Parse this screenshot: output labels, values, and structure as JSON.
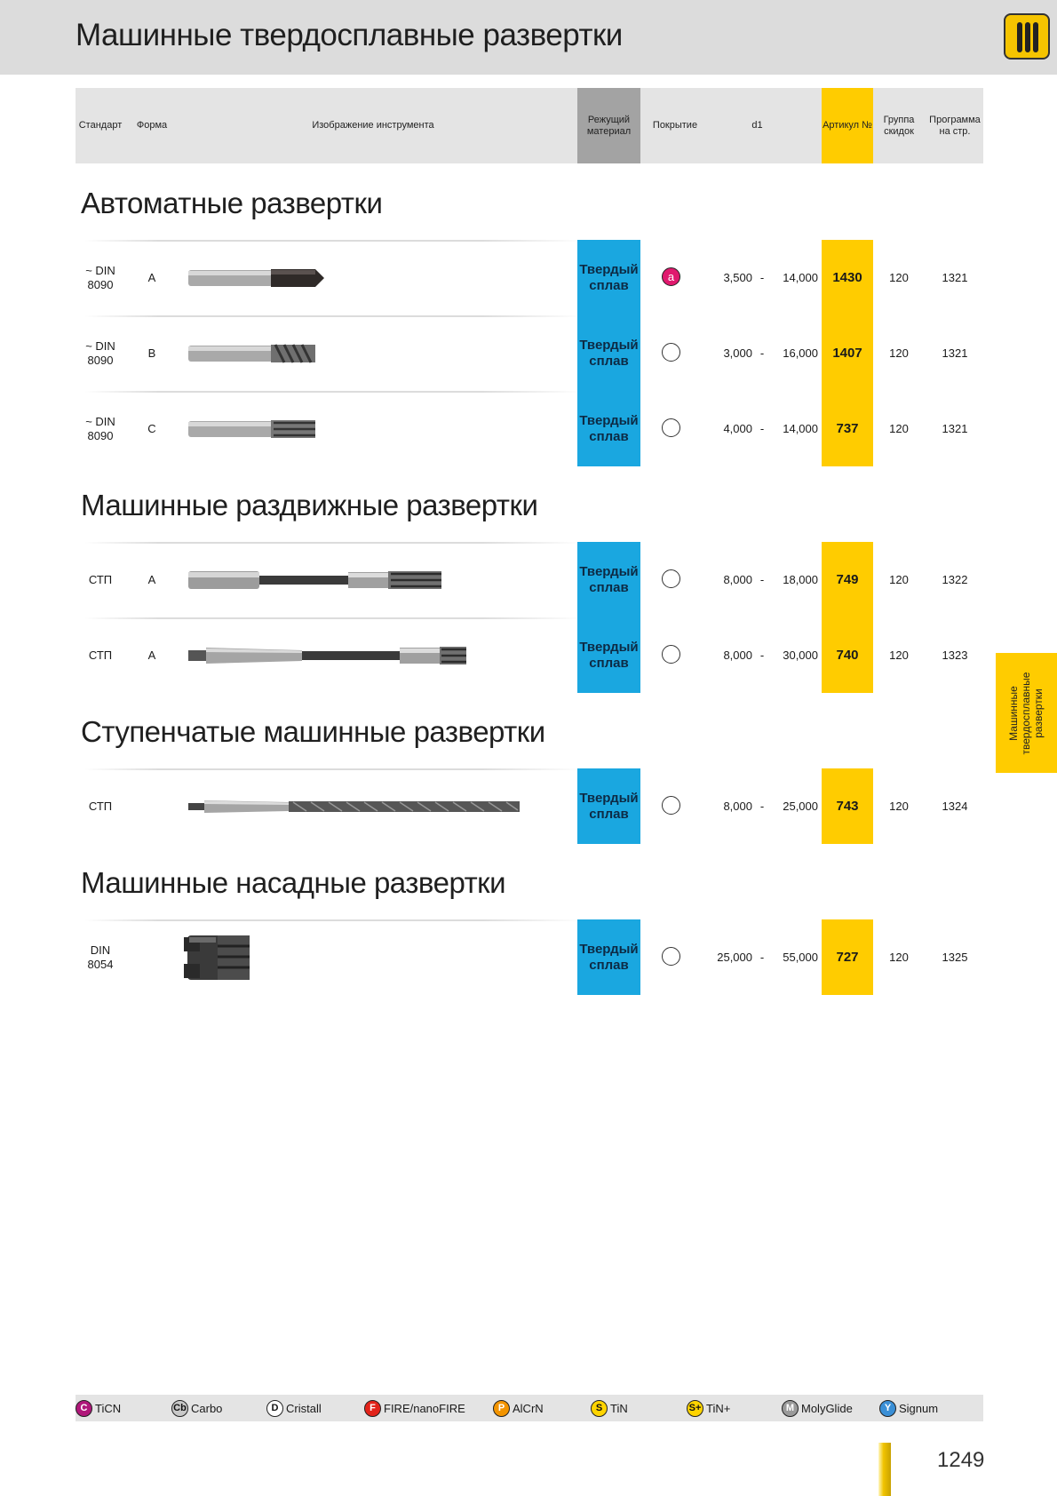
{
  "page": {
    "title": "Машинные твердосплавные развертки",
    "side_tab": "Машинные\nтвердосплавные\nразвертки",
    "page_number": "1249"
  },
  "header": {
    "standard": "Стандарт",
    "form": "Форма",
    "image": "Изображение инструмента",
    "material": "Режущий материал",
    "coating": "Покрытие",
    "d1": "d1",
    "article": "Артикул №",
    "discount_group": "Группа скидок",
    "program_page": "Программа на стр."
  },
  "sections": [
    {
      "title": "Автоматные развертки",
      "rows": [
        {
          "standard": "~ DIN 8090",
          "form": "A",
          "tool": "reamer-short-a",
          "material": "Твердый сплав",
          "coating": "a",
          "d1_from": "3,500",
          "dash": "-",
          "d1_to": "14,000",
          "article": "1430",
          "group": "120",
          "page": "1321"
        },
        {
          "standard": "~ DIN 8090",
          "form": "B",
          "tool": "reamer-short-b",
          "material": "Твердый сплав",
          "coating": "",
          "d1_from": "3,000",
          "dash": "-",
          "d1_to": "16,000",
          "article": "1407",
          "group": "120",
          "page": "1321"
        },
        {
          "standard": "~ DIN 8090",
          "form": "C",
          "tool": "reamer-short-c",
          "material": "Твердый сплав",
          "coating": "",
          "d1_from": "4,000",
          "dash": "-",
          "d1_to": "14,000",
          "article": "737",
          "group": "120",
          "page": "1321"
        }
      ]
    },
    {
      "title": "Машинные раздвижные развертки",
      "rows": [
        {
          "standard": "СТП",
          "form": "A",
          "tool": "reamer-expanding-straight",
          "material": "Твердый сплав",
          "coating": "",
          "d1_from": "8,000",
          "dash": "-",
          "d1_to": "18,000",
          "article": "749",
          "group": "120",
          "page": "1322"
        },
        {
          "standard": "СТП",
          "form": "A",
          "tool": "reamer-expanding-taper",
          "material": "Твердый сплав",
          "coating": "",
          "d1_from": "8,000",
          "dash": "-",
          "d1_to": "30,000",
          "article": "740",
          "group": "120",
          "page": "1323"
        }
      ]
    },
    {
      "title": "Ступенчатые машинные развертки",
      "rows": [
        {
          "standard": "СТП",
          "form": "",
          "tool": "reamer-stepped-taper",
          "material": "Твердый сплав",
          "coating": "",
          "d1_from": "8,000",
          "dash": "-",
          "d1_to": "25,000",
          "article": "743",
          "group": "120",
          "page": "1324"
        }
      ]
    },
    {
      "title": "Машинные насадные развертки",
      "rows": [
        {
          "standard": "DIN 8054",
          "form": "",
          "tool": "reamer-shell",
          "material": "Твердый сплав",
          "coating": "",
          "d1_from": "25,000",
          "dash": "-",
          "d1_to": "55,000",
          "article": "727",
          "group": "120",
          "page": "1325"
        }
      ]
    }
  ],
  "legend": [
    {
      "symbol": "C",
      "label": "TiCN",
      "color": "#b0177a"
    },
    {
      "symbol": "Cb",
      "label": "Carbo",
      "color": "#c8c8c8"
    },
    {
      "symbol": "D",
      "label": "Cristall",
      "color": "#ffffff"
    },
    {
      "symbol": "F",
      "label": "FIRE/nanoFIRE",
      "color": "#e2231a"
    },
    {
      "symbol": "P",
      "label": "AlCrN",
      "color": "#f29400"
    },
    {
      "symbol": "S",
      "label": "TiN",
      "color": "#ffd400"
    },
    {
      "symbol": "S+",
      "label": "TiN+",
      "color": "#ffd400"
    },
    {
      "symbol": "M",
      "label": "MolyGlide",
      "color": "#9a9a9a"
    },
    {
      "symbol": "Y",
      "label": "Signum",
      "color": "#3a8fd6"
    }
  ]
}
